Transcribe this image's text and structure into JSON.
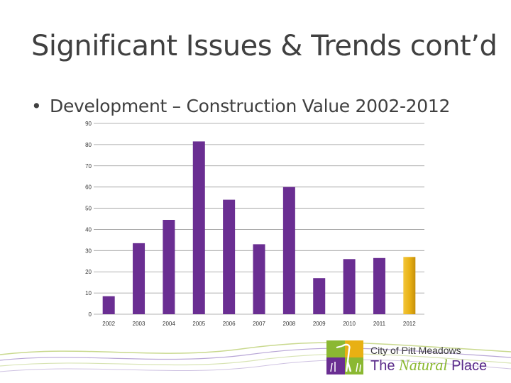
{
  "slide": {
    "title": "Significant Issues & Trends cont’d",
    "bullet": "Development – Construction Value 2002-2012"
  },
  "logo": {
    "city_name": "City of Pitt Meadows",
    "tagline_prefix": "The",
    "tagline_emphasis": "Natural",
    "tagline_suffix": "Place"
  },
  "colors": {
    "bar": "#6a2e92",
    "highlight_bar": "#e8b013",
    "grid": "#9a9a9a",
    "text": "#404040"
  },
  "chart_data": {
    "type": "bar",
    "title": "",
    "xlabel": "",
    "ylabel": "",
    "categories": [
      "2002",
      "2003",
      "2004",
      "2005",
      "2006",
      "2007",
      "2008",
      "2009",
      "2010",
      "2011",
      "2012"
    ],
    "values": [
      8.5,
      33.5,
      44.5,
      81.5,
      54,
      33,
      60,
      17,
      26,
      26.5,
      27
    ],
    "highlight_index": 10,
    "ylim": [
      0,
      90
    ],
    "yticks": [
      0,
      10,
      20,
      30,
      40,
      50,
      60,
      70,
      80,
      90
    ],
    "grid": true,
    "legend": "none"
  }
}
